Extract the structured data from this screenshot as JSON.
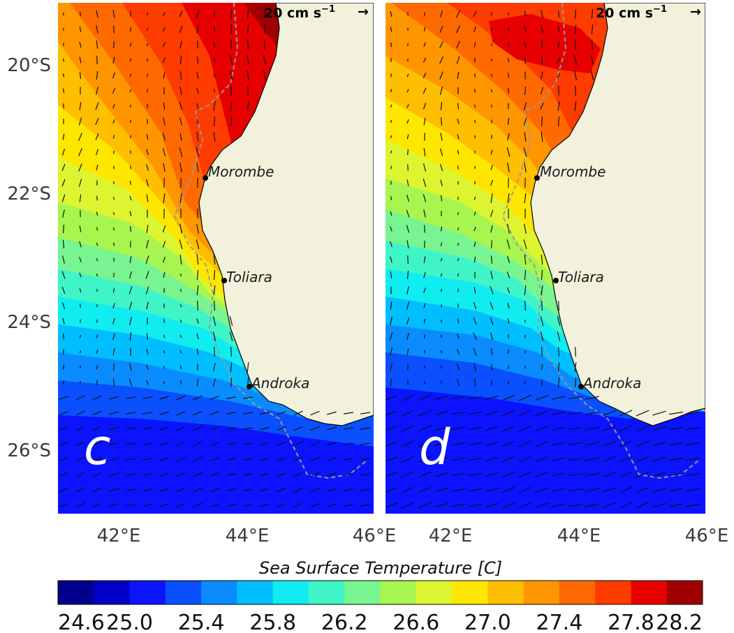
{
  "figure": {
    "colorbar": {
      "title": "Sea Surface Temperature [C]",
      "levels": [
        24.6,
        24.8,
        25.0,
        25.2,
        25.4,
        25.6,
        25.8,
        26.0,
        26.2,
        26.4,
        26.6,
        26.8,
        27.0,
        27.2,
        27.4,
        27.6,
        27.8,
        28.0,
        28.2
      ],
      "tick_labels": [
        "24.6",
        "25.0",
        "25.4",
        "25.8",
        "26.2",
        "26.6",
        "27.0",
        "27.4",
        "27.8",
        "28.2"
      ],
      "colors": [
        "#00008c",
        "#0000c8",
        "#0a14ff",
        "#0a50ff",
        "#0a8cff",
        "#00beff",
        "#10ecf0",
        "#3ff5c8",
        "#78f590",
        "#a8f550",
        "#ddf530",
        "#ffe600",
        "#ffbe00",
        "#ff9600",
        "#ff6a00",
        "#ff3c00",
        "#e60000",
        "#a00000"
      ]
    },
    "axes": {
      "lat_labels": [
        "20°S",
        "22°S",
        "24°S",
        "26°S"
      ],
      "lon_labels": [
        "42°E",
        "44°E",
        "46°E"
      ]
    },
    "panels": [
      {
        "label": "c",
        "scale_label": "20 cm s",
        "scale_exp": "−1",
        "scale_arrow": "→",
        "cities": [
          {
            "name": "Morombe",
            "lon": 43.38,
            "lat": -21.74
          },
          {
            "name": "Toliara",
            "lon": 43.67,
            "lat": -23.35
          },
          {
            "name": "Androka",
            "lon": 44.05,
            "lat": -24.99
          }
        ],
        "sst_field": "warm core to the north, cold water to the south"
      },
      {
        "label": "d",
        "scale_label": "20 cm s",
        "scale_exp": "−1",
        "scale_arrow": "→",
        "cities": [
          {
            "name": "Morombe",
            "lon": 43.38,
            "lat": -21.74
          },
          {
            "name": "Toliara",
            "lon": 43.67,
            "lat": -23.35
          },
          {
            "name": "Androka",
            "lon": 44.05,
            "lat": -24.99
          }
        ],
        "sst_field": "cooler, with a stronger southwestward current in the south"
      }
    ]
  }
}
